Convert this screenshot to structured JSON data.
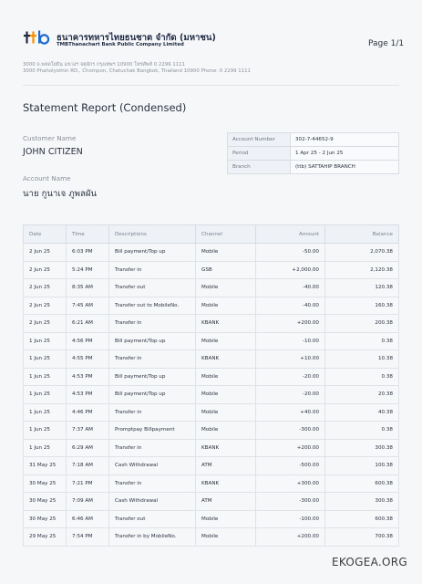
{
  "header": {
    "bank_name_th": "ธนาคารทหารไทยธนชาต จำกัด (มหาชน)",
    "bank_name_en": "TMBThanachart Bank Public Company Limited",
    "page_label": "Page 1/1",
    "address_th": "3000 ถ.พหลโยธิน แขวงฯ จตุจักร กรุงเทพฯ 10900 โทรศัพท์ 0 2299 1111",
    "address_en": "3000 Phaholyothin RD., Chompon, Chatuchak Bangkok, Thailand 10900 Phone: 0 2299 1111"
  },
  "report": {
    "title": "Statement Report (Condensed)",
    "customer_name_label": "Customer Name",
    "customer_name": "JOHN CITIZEN",
    "account_name_label": "Account Name",
    "account_name": "นาย กูนาเจ ภูพลผัน"
  },
  "account_info": [
    {
      "label": "Account Number",
      "value": "302-7-44652-9"
    },
    {
      "label": "Period",
      "value": "1 Apr 25 - 2 Jun 25"
    },
    {
      "label": "Branch",
      "value": "(ttb) SATTAHIP BRANCH"
    }
  ],
  "table": {
    "headers": [
      "Date",
      "Time",
      "Descriptions",
      "Channel",
      "Amount",
      "Balance"
    ],
    "rows": [
      [
        "2 Jun 25",
        "6:03 PM",
        "Bill payment/Top up",
        "Mobile",
        "-50.00",
        "2,070.38"
      ],
      [
        "2 Jun 25",
        "5:24 PM",
        "Transfer in",
        "GSB",
        "+2,000.00",
        "2,120.38"
      ],
      [
        "2 Jun 25",
        "8:35 AM",
        "Transfer out",
        "Mobile",
        "-40.00",
        "120.38"
      ],
      [
        "2 Jun 25",
        "7:45 AM",
        "Transfer out to MobileNo.",
        "Mobile",
        "-40.00",
        "160.38"
      ],
      [
        "2 Jun 25",
        "6:21 AM",
        "Transfer in",
        "KBANK",
        "+200.00",
        "200.38"
      ],
      [
        "1 Jun 25",
        "4:56 PM",
        "Bill payment/Top up",
        "Mobile",
        "-10.00",
        "0.38"
      ],
      [
        "1 Jun 25",
        "4:55 PM",
        "Transfer in",
        "KBANK",
        "+10.00",
        "10.38"
      ],
      [
        "1 Jun 25",
        "4:53 PM",
        "Bill payment/Top up",
        "Mobile",
        "-20.00",
        "0.38"
      ],
      [
        "1 Jun 25",
        "4:53 PM",
        "Bill payment/Top up",
        "Mobile",
        "-20.00",
        "20.38"
      ],
      [
        "1 Jun 25",
        "4:46 PM",
        "Transfer in",
        "Mobile",
        "+40.00",
        "40.38"
      ],
      [
        "1 Jun 25",
        "7:37 AM",
        "Promptpay Billpayment",
        "Mobile",
        "-300.00",
        "0.38"
      ],
      [
        "1 Jun 25",
        "6:29 AM",
        "Transfer in",
        "KBANK",
        "+200.00",
        "300.38"
      ],
      [
        "31 May 25",
        "7:18 AM",
        "Cash Withdrawal",
        "ATM",
        "-500.00",
        "100.38"
      ],
      [
        "30 May 25",
        "7:21 PM",
        "Transfer in",
        "KBANK",
        "+300.00",
        "600.38"
      ],
      [
        "30 May 25",
        "7:09 AM",
        "Cash Withdrawal",
        "ATM",
        "-300.00",
        "300.38"
      ],
      [
        "30 May 25",
        "6:46 AM",
        "Transfer out",
        "Mobile",
        "-100.00",
        "600.38"
      ],
      [
        "29 May 25",
        "7:54 PM",
        "Transfer in by MobileNo.",
        "Mobile",
        "+200.00",
        "700.38"
      ]
    ]
  },
  "watermark": "EKOGEA.ORG",
  "colors": {
    "brand_navy": "#1f2a44",
    "brand_orange": "#f39200",
    "brand_blue": "#1b6ad2"
  }
}
